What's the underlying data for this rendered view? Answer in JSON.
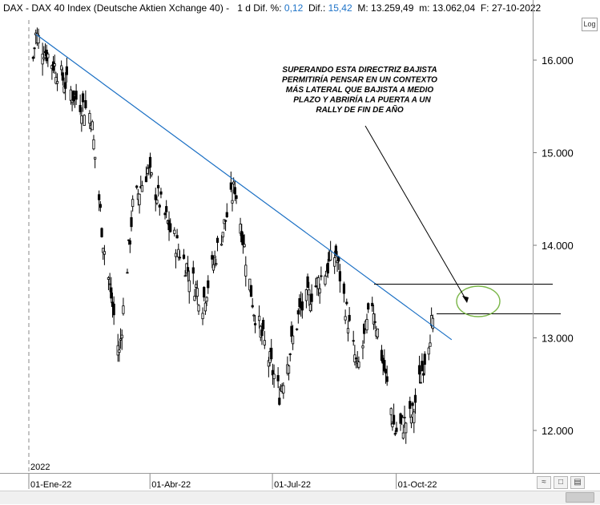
{
  "header": {
    "symbol": "DAX",
    "sep": " - ",
    "name": "DAX 40 Index (Deutsche Aktien Xchange 40)",
    "dash": " - ",
    "timeframe": "1 d",
    "dif_pct_label": "Dif. %:",
    "dif_pct": "0,12",
    "dif_label": "Dif.:",
    "dif": "15,42",
    "max_label": "M:",
    "max": "13.259,49",
    "min_label": "m:",
    "min": "13.062,04",
    "date_label": "F:",
    "date": "27-10-2022"
  },
  "controls": {
    "log_label": "Log"
  },
  "colors": {
    "trendline": "#1a6fc4",
    "candle": "#000000",
    "highlight_circle": "#7ab648",
    "header_value": "#1e73c8"
  },
  "chart_data": {
    "type": "candlestick",
    "year_label": "2022",
    "x_ticks": [
      "01-Ene-22",
      "01-Abr-22",
      "01-Jul-22",
      "01-Oct-22"
    ],
    "y_ticks": [
      "16.000",
      "15.000",
      "14.000",
      "13.000",
      "12.000"
    ],
    "y_tick_values": [
      16000,
      15000,
      14000,
      13000,
      12000
    ],
    "ylim": [
      11600,
      16600
    ],
    "annotation": "SUPERANDO ESTA DIRECTRIZ BAJISTA PERMITIRÍA PENSAR EN UN CONTEXTO MÁS LATERAL QUE BAJISTA A MEDIO PLAZO Y ABRIRÍA LA PUERTA A UN RALLY DE FIN DE AÑO",
    "annotation_lines": [
      "SUPERANDO ESTA DIRECTRIZ BAJISTA",
      "PERMITIRÍA PENSAR EN UN CONTEXTO",
      "MÁS LATERAL QUE BAJISTA A MEDIO",
      "PLAZO Y ABRIRÍA LA PUERTA A UN",
      "RALLY DE FIN DE AÑO"
    ],
    "resistance_levels": [
      13580,
      13260
    ],
    "trendline": {
      "from": {
        "date": "2022-01-05",
        "value": 16280
      },
      "to": {
        "date": "2022-11-10",
        "value": 12980
      }
    },
    "last_close": 13211,
    "approx_path": [
      {
        "date": "2022-01-03",
        "close": 16020
      },
      {
        "date": "2022-01-05",
        "close": 16270
      },
      {
        "date": "2022-01-20",
        "close": 15910
      },
      {
        "date": "2022-02-02",
        "close": 15620
      },
      {
        "date": "2022-02-15",
        "close": 15410
      },
      {
        "date": "2022-02-24",
        "close": 14050
      },
      {
        "date": "2022-03-08",
        "close": 12830
      },
      {
        "date": "2022-03-18",
        "close": 14410
      },
      {
        "date": "2022-03-29",
        "close": 14820
      },
      {
        "date": "2022-04-15",
        "close": 14160
      },
      {
        "date": "2022-05-09",
        "close": 13380
      },
      {
        "date": "2022-06-02",
        "close": 14640
      },
      {
        "date": "2022-06-16",
        "close": 13310
      },
      {
        "date": "2022-07-05",
        "close": 12400
      },
      {
        "date": "2022-07-20",
        "close": 13280
      },
      {
        "date": "2022-08-16",
        "close": 13910
      },
      {
        "date": "2022-09-01",
        "close": 12640
      },
      {
        "date": "2022-09-12",
        "close": 13400
      },
      {
        "date": "2022-09-29",
        "close": 11980
      },
      {
        "date": "2022-10-12",
        "close": 12170
      },
      {
        "date": "2022-10-27",
        "close": 13211
      }
    ]
  }
}
